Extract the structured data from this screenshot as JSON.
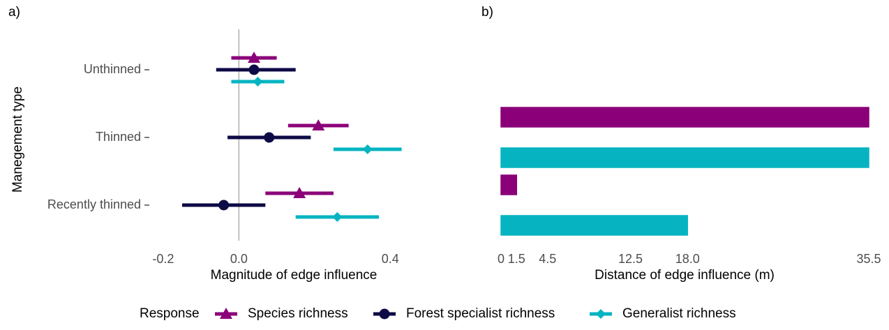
{
  "chart_data": [
    {
      "type": "pointrange",
      "panel_label": "a)",
      "xlabel": "Magnitude of edge influence",
      "ylabel": "Manegement type",
      "categories": [
        "Unthinned",
        "Thinned",
        "Recently thinned"
      ],
      "legend_title": "Response",
      "series": [
        {
          "name": "Species richness",
          "color": "#8b0079",
          "marker": "triangle",
          "values": [
            0.04,
            0.21,
            0.16
          ],
          "lower": [
            -0.02,
            0.13,
            0.07
          ],
          "upper": [
            0.1,
            0.29,
            0.25
          ]
        },
        {
          "name": "Forest specialist richness",
          "color": "#0d0a45",
          "marker": "circle",
          "values": [
            0.04,
            0.08,
            -0.04
          ],
          "lower": [
            -0.06,
            -0.03,
            -0.15
          ],
          "upper": [
            0.15,
            0.19,
            0.07
          ]
        },
        {
          "name": "Generalist richness",
          "color": "#06b4c1",
          "marker": "diamond",
          "values": [
            0.05,
            0.34,
            0.26
          ],
          "lower": [
            -0.02,
            0.25,
            0.15
          ],
          "upper": [
            0.12,
            0.43,
            0.37
          ]
        }
      ],
      "xlim": [
        -0.22,
        0.44
      ],
      "xticks": [
        -0.2,
        {
          "value": 0,
          "label": "0.0"
        },
        0.4
      ],
      "refline": 0
    },
    {
      "type": "hbar",
      "panel_label": "b)",
      "xlabel": "Distance of edge influence (m)",
      "series": [
        {
          "color": "#8b0079",
          "values": [
            0,
            35.5,
            1.5
          ]
        },
        {
          "color": "#0d0a45",
          "values": [
            0,
            0,
            0
          ]
        },
        {
          "color": "#06b4c1",
          "values": [
            0,
            35.5,
            18
          ]
        }
      ],
      "xlim": [
        0,
        35.5
      ],
      "xticks": [
        0,
        1.5,
        4.5,
        12.5,
        {
          "value": 18,
          "label": "18.0"
        },
        35.5
      ]
    }
  ]
}
